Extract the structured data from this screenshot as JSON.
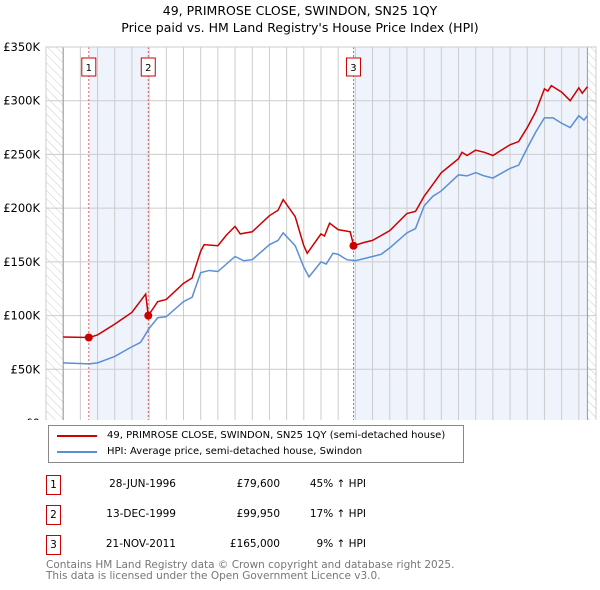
{
  "chart_data": {
    "type": "line",
    "title": "49, PRIMROSE CLOSE, SWINDON, SN25 1QY",
    "subtitle": "Price paid vs. HM Land Registry's House Price Index (HPI)",
    "xlim": [
      1994,
      2026
    ],
    "ylim": [
      0,
      350000
    ],
    "yticks": [
      {
        "v": 0,
        "label": "£0"
      },
      {
        "v": 50000,
        "label": "£50K"
      },
      {
        "v": 100000,
        "label": "£100K"
      },
      {
        "v": 150000,
        "label": "£150K"
      },
      {
        "v": 200000,
        "label": "£200K"
      },
      {
        "v": 250000,
        "label": "£250K"
      },
      {
        "v": 300000,
        "label": "£300K"
      },
      {
        "v": 350000,
        "label": "£350K"
      }
    ],
    "xticks": [
      "1994",
      "1995",
      "1996",
      "1997",
      "1998",
      "1999",
      "2000",
      "2001",
      "2002",
      "2003",
      "2004",
      "2005",
      "2006",
      "2007",
      "2008",
      "2009",
      "2010",
      "2011",
      "2012",
      "2013",
      "2014",
      "2015",
      "2016",
      "2017",
      "2018",
      "2019",
      "2020",
      "2021",
      "2022",
      "2023",
      "2024",
      "2025",
      "2026"
    ],
    "grid": true,
    "series": [
      {
        "name": "49, PRIMROSE CLOSE, SWINDON, SN25 1QY (semi-detached house)",
        "color": "#cc0000",
        "x": [
          1995,
          1996.5,
          1997,
          1998,
          1999,
          1999.8,
          1999.95,
          2000.5,
          2001,
          2002,
          2002.5,
          2003,
          2003.2,
          2004,
          2004.5,
          2005,
          2005.3,
          2006,
          2007,
          2007.5,
          2007.8,
          2008.5,
          2009,
          2009.2,
          2010,
          2010.2,
          2010.5,
          2011,
          2011.7,
          2011.9,
          2012.5,
          2013,
          2014,
          2015,
          2015.5,
          2016,
          2016.5,
          2017,
          2018,
          2018.2,
          2018.5,
          2019,
          2019.5,
          2020,
          2021,
          2021.5,
          2022,
          2022.5,
          2023,
          2023.2,
          2023.4,
          2024,
          2024.5,
          2025,
          2025.2,
          2025.5
        ],
        "y": [
          80000,
          79600,
          82000,
          92000,
          103000,
          120000,
          99950,
          113000,
          115000,
          130000,
          135000,
          160000,
          166000,
          165000,
          175000,
          183000,
          176000,
          178000,
          193000,
          198000,
          208000,
          192000,
          165000,
          158000,
          176000,
          174000,
          186000,
          180000,
          178000,
          165000,
          168000,
          170000,
          179000,
          195000,
          197000,
          211000,
          222000,
          233000,
          246000,
          252000,
          249000,
          254000,
          252000,
          249000,
          259000,
          262000,
          275000,
          290000,
          311000,
          309000,
          314000,
          308000,
          300000,
          312000,
          307000,
          313000
        ]
      },
      {
        "name": "HPI: Average price, semi-detached house, Swindon",
        "color": "#5b8fd4",
        "x": [
          1995,
          1996.5,
          1997,
          1998,
          1999,
          1999.5,
          2000,
          2000.5,
          2001,
          2002,
          2002.5,
          2003,
          2003.5,
          2004,
          2005,
          2005.5,
          2006,
          2007,
          2007.5,
          2007.8,
          2008.5,
          2009,
          2009.3,
          2010,
          2010.3,
          2010.7,
          2011,
          2011.5,
          2012,
          2013,
          2013.5,
          2014,
          2015,
          2015.5,
          2016,
          2016.5,
          2017,
          2018,
          2018.5,
          2019,
          2019.5,
          2020,
          2021,
          2021.5,
          2022,
          2022.5,
          2023,
          2023.5,
          2024,
          2024.5,
          2025,
          2025.3,
          2025.5
        ],
        "y": [
          56000,
          55000,
          56000,
          62000,
          71000,
          75000,
          88000,
          98000,
          99000,
          113000,
          117000,
          140000,
          142000,
          141000,
          155000,
          151000,
          152000,
          166000,
          170000,
          177000,
          165000,
          145000,
          136000,
          150000,
          148000,
          158000,
          157000,
          152000,
          151000,
          155000,
          157000,
          163000,
          177000,
          181000,
          202000,
          211000,
          216000,
          231000,
          230000,
          233000,
          230000,
          228000,
          237000,
          240000,
          256000,
          271000,
          284000,
          284000,
          279000,
          275000,
          286000,
          282000,
          286000
        ]
      }
    ],
    "sales": [
      {
        "n": "1",
        "x": 1996.49,
        "y": 79600,
        "date": "28-JUN-1996",
        "price": "£79,600",
        "hpi": "45% ↑ HPI"
      },
      {
        "n": "2",
        "x": 1999.95,
        "y": 99950,
        "date": "13-DEC-1999",
        "price": "£99,950",
        "hpi": "17% ↑ HPI"
      },
      {
        "n": "3",
        "x": 2011.89,
        "y": 165000,
        "date": "21-NOV-2011",
        "price": "£165,000",
        "hpi": "9% ↑ HPI"
      }
    ],
    "shaded": [
      [
        1996.49,
        1999.95
      ],
      [
        2011.89,
        2025.5
      ]
    ],
    "hatched": [
      [
        1994,
        1995
      ],
      [
        2025.5,
        2026
      ]
    ],
    "legend_position": "below"
  },
  "footer": [
    "Contains HM Land Registry data © Crown copyright and database right 2025.",
    "This data is licensed under the Open Government Licence v3.0."
  ]
}
